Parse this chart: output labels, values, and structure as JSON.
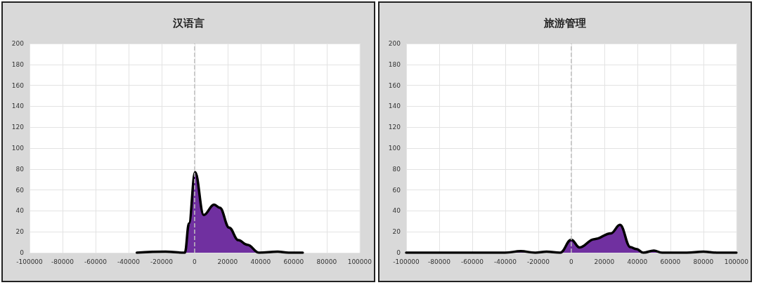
{
  "chart_data": [
    {
      "type": "area",
      "title": "汉语言",
      "xlim": [
        -100000,
        100000
      ],
      "xticks": [
        -100000,
        -80000,
        -60000,
        -40000,
        -20000,
        0,
        20000,
        40000,
        60000,
        80000,
        100000
      ],
      "ylim": [
        0,
        200
      ],
      "yticks": [
        0,
        20,
        40,
        60,
        80,
        100,
        120,
        140,
        160,
        180,
        200
      ],
      "grid": true,
      "marker": "none",
      "line_style": "solid",
      "ref_lines": [
        {
          "axis": "x",
          "value": 0,
          "color": "#bfbfbf",
          "line_style": "dashed"
        }
      ],
      "series": [
        {
          "color": "#7030a0",
          "x": [
            -35000,
            -17600,
            -5900,
            -3400,
            300,
            5500,
            11800,
            15300,
            20900,
            26500,
            32000,
            39000,
            50300,
            57000,
            65500
          ],
          "values": [
            0,
            1,
            0,
            28,
            77,
            36,
            46,
            43,
            24,
            12,
            7.5,
            0,
            1,
            0,
            0
          ]
        }
      ]
    },
    {
      "type": "area",
      "title": "旅游管理",
      "xlim": [
        -100000,
        100000
      ],
      "xticks": [
        -100000,
        -80000,
        -60000,
        -40000,
        -20000,
        0,
        20000,
        40000,
        60000,
        80000,
        100000
      ],
      "ylim": [
        0,
        200
      ],
      "yticks": [
        0,
        20,
        40,
        60,
        80,
        100,
        120,
        140,
        160,
        180,
        200
      ],
      "grid": true,
      "marker": "none",
      "line_style": "solid",
      "ref_lines": [
        {
          "axis": "x",
          "value": 0,
          "color": "#bfbfbf",
          "line_style": "dashed"
        }
      ],
      "series": [
        {
          "color": "#7030a0",
          "x": [
            -100000,
            -40000,
            -30600,
            -22000,
            -15000,
            -6700,
            0,
            5000,
            14000,
            24000,
            29500,
            35800,
            39400,
            43600,
            50000,
            55000,
            70000,
            80000,
            88000,
            100000
          ],
          "values": [
            0,
            0,
            1.5,
            0,
            1,
            0,
            12.5,
            5,
            13,
            18.5,
            26.6,
            5.3,
            3.5,
            0,
            2,
            0,
            0,
            1,
            0,
            0
          ]
        }
      ]
    }
  ]
}
